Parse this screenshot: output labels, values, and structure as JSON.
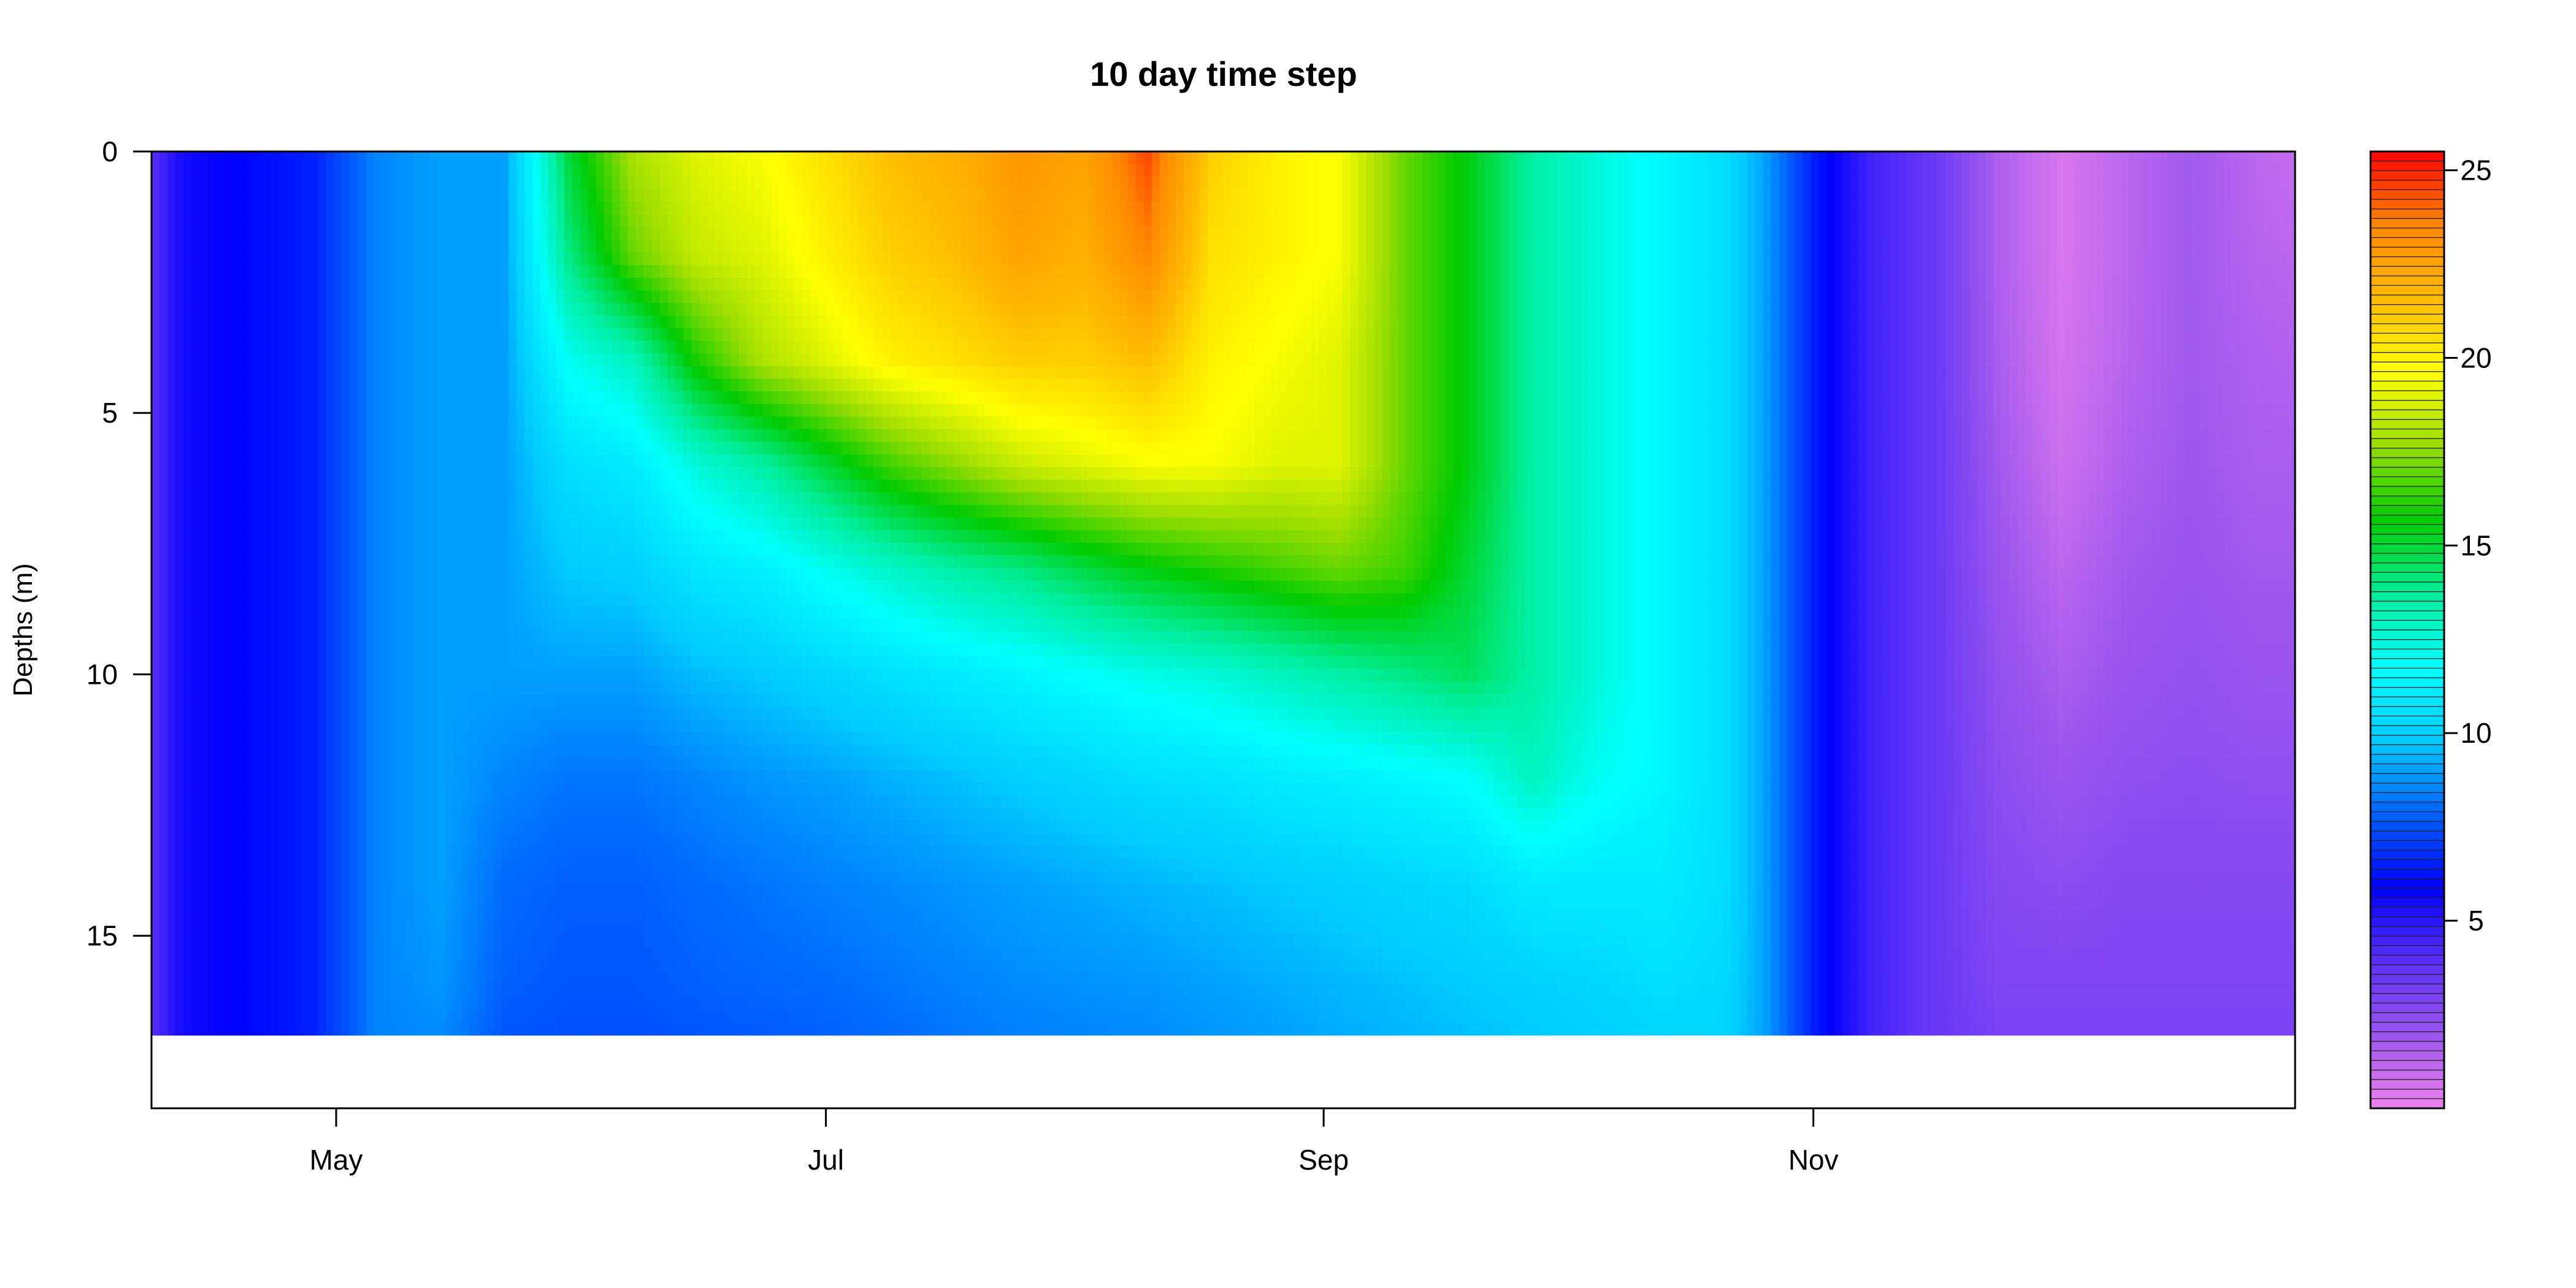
{
  "chart_data": {
    "type": "heatmap",
    "title": "10 day time step",
    "xlabel": "",
    "ylabel": "Depths (m)",
    "x_axis": {
      "type": "date",
      "range": [
        "2013-04-08",
        "2013-12-31"
      ],
      "ticks": [
        {
          "label": "May",
          "date": "2013-05-01"
        },
        {
          "label": "Jul",
          "date": "2013-07-01"
        },
        {
          "label": "Sep",
          "date": "2013-09-01"
        },
        {
          "label": "Nov",
          "date": "2013-11-01"
        }
      ]
    },
    "y_axis": {
      "range": [
        0,
        18.3
      ],
      "reversed": true,
      "ticks": [
        0,
        5,
        10,
        15
      ],
      "data_bottom": 16.9
    },
    "colorbar": {
      "range": [
        0,
        25.5
      ],
      "ticks": [
        5,
        10,
        15,
        20,
        25
      ],
      "palette": [
        "#ee82ee",
        "#9a55ee",
        "#5a30f8",
        "#0000ff",
        "#0062ff",
        "#00ccff",
        "#00ffff",
        "#00ee99",
        "#00cc00",
        "#99dd00",
        "#ffff00",
        "#ffbb00",
        "#ff8800",
        "#ff0000"
      ]
    },
    "depth_ticks_series": [
      0,
      2,
      4,
      6,
      8,
      10,
      12,
      14,
      16,
      16.9
    ],
    "profiles": [
      {
        "date": "2013-04-08",
        "temps": [
          4.0,
          4.0,
          4.0,
          4.0,
          4.0,
          4.0,
          4.0,
          4.0,
          4.0,
          4.0
        ]
      },
      {
        "date": "2013-04-12",
        "temps": [
          5.5,
          5.5,
          5.5,
          5.5,
          5.5,
          5.5,
          5.5,
          5.5,
          5.5,
          5.5
        ]
      },
      {
        "date": "2013-04-20",
        "temps": [
          6.0,
          6.0,
          6.0,
          6.0,
          6.0,
          6.0,
          6.0,
          6.0,
          6.0,
          6.0
        ]
      },
      {
        "date": "2013-04-28",
        "temps": [
          6.5,
          6.5,
          6.5,
          6.5,
          6.5,
          6.5,
          6.5,
          6.5,
          6.5,
          6.5
        ]
      },
      {
        "date": "2013-05-06",
        "temps": [
          8.5,
          8.5,
          8.5,
          8.5,
          8.5,
          8.5,
          8.5,
          8.5,
          8.5,
          8.5
        ]
      },
      {
        "date": "2013-05-14",
        "temps": [
          9.0,
          9.0,
          9.0,
          9.0,
          9.0,
          9.0,
          9.0,
          9.0,
          8.8,
          8.6
        ]
      },
      {
        "date": "2013-05-22",
        "temps": [
          9.0,
          9.0,
          9.0,
          9.0,
          9.0,
          9.0,
          8.5,
          8.0,
          7.8,
          7.6
        ]
      },
      {
        "date": "2013-05-30",
        "temps": [
          15.0,
          14.0,
          12.0,
          10.5,
          9.8,
          9.0,
          8.2,
          7.8,
          7.6,
          7.5
        ]
      },
      {
        "date": "2013-06-07",
        "temps": [
          18.0,
          17.0,
          13.0,
          11.0,
          10.0,
          9.0,
          8.2,
          7.8,
          7.6,
          7.5
        ]
      },
      {
        "date": "2013-06-15",
        "temps": [
          19.0,
          18.5,
          16.0,
          12.5,
          10.8,
          9.5,
          8.5,
          8.0,
          7.8,
          7.6
        ]
      },
      {
        "date": "2013-06-23",
        "temps": [
          19.5,
          19.0,
          18.0,
          13.5,
          11.2,
          9.8,
          8.8,
          8.2,
          7.9,
          7.7
        ]
      },
      {
        "date": "2013-07-01",
        "temps": [
          20.5,
          20.0,
          19.0,
          15.0,
          12.0,
          10.2,
          9.0,
          8.4,
          8.0,
          7.8
        ]
      },
      {
        "date": "2013-07-09",
        "temps": [
          21.5,
          21.0,
          20.0,
          16.5,
          12.8,
          10.6,
          9.3,
          8.6,
          8.2,
          8.0
        ]
      },
      {
        "date": "2013-07-17",
        "temps": [
          22.0,
          21.5,
          20.5,
          17.5,
          13.5,
          11.0,
          9.6,
          8.8,
          8.4,
          8.2
        ]
      },
      {
        "date": "2013-07-25",
        "temps": [
          23.0,
          22.5,
          21.0,
          18.5,
          14.0,
          11.4,
          9.9,
          9.0,
          8.6,
          8.4
        ]
      },
      {
        "date": "2013-08-02",
        "temps": [
          22.5,
          22.0,
          21.0,
          19.0,
          14.8,
          11.8,
          10.2,
          9.2,
          8.7,
          8.5
        ]
      },
      {
        "date": "2013-08-10",
        "temps": [
          24.5,
          23.5,
          21.5,
          19.5,
          15.5,
          12.2,
          10.5,
          9.4,
          8.8,
          8.6
        ]
      },
      {
        "date": "2013-08-18",
        "temps": [
          21.0,
          20.5,
          20.0,
          19.5,
          16.0,
          12.5,
          10.7,
          9.6,
          9.0,
          8.8
        ]
      },
      {
        "date": "2013-08-26",
        "temps": [
          20.0,
          20.0,
          19.5,
          19.0,
          16.5,
          13.0,
          11.0,
          9.8,
          9.2,
          9.0
        ]
      },
      {
        "date": "2013-09-03",
        "temps": [
          19.5,
          19.5,
          19.0,
          19.0,
          17.0,
          13.5,
          11.2,
          10.0,
          9.4,
          9.2
        ]
      },
      {
        "date": "2013-09-11",
        "temps": [
          17.0,
          17.0,
          17.0,
          17.0,
          16.5,
          14.0,
          11.5,
          10.2,
          9.6,
          9.4
        ]
      },
      {
        "date": "2013-09-19",
        "temps": [
          15.5,
          15.5,
          15.5,
          15.5,
          15.0,
          14.5,
          11.8,
          10.4,
          9.8,
          9.6
        ]
      },
      {
        "date": "2013-09-27",
        "temps": [
          13.5,
          13.5,
          13.5,
          13.5,
          13.5,
          13.5,
          13.0,
          11.0,
          10.0,
          9.8
        ]
      },
      {
        "date": "2013-10-05",
        "temps": [
          12.5,
          12.5,
          12.5,
          12.5,
          12.5,
          12.5,
          12.0,
          11.0,
          10.2,
          10.0
        ]
      },
      {
        "date": "2013-10-13",
        "temps": [
          11.5,
          11.5,
          11.5,
          11.5,
          11.5,
          11.5,
          11.5,
          11.0,
          10.5,
          10.2
        ]
      },
      {
        "date": "2013-10-21",
        "temps": [
          10.5,
          10.5,
          10.5,
          10.5,
          10.5,
          10.5,
          10.5,
          10.5,
          10.3,
          10.2
        ]
      },
      {
        "date": "2013-10-26",
        "temps": [
          9.0,
          9.0,
          9.0,
          9.0,
          9.0,
          9.0,
          9.0,
          9.0,
          9.0,
          9.0
        ]
      },
      {
        "date": "2013-11-01",
        "temps": [
          6.5,
          6.5,
          6.5,
          6.5,
          6.5,
          6.5,
          6.5,
          6.5,
          6.5,
          6.5
        ]
      },
      {
        "date": "2013-11-08",
        "temps": [
          4.5,
          4.5,
          4.5,
          4.5,
          4.5,
          4.5,
          4.5,
          4.5,
          4.5,
          4.5
        ]
      },
      {
        "date": "2013-11-16",
        "temps": [
          3.5,
          3.5,
          3.5,
          3.5,
          3.5,
          3.5,
          3.5,
          3.5,
          3.5,
          3.5
        ]
      },
      {
        "date": "2013-11-24",
        "temps": [
          1.5,
          1.5,
          1.6,
          1.8,
          2.0,
          2.2,
          2.4,
          2.6,
          2.8,
          3.0
        ]
      },
      {
        "date": "2013-12-02",
        "temps": [
          0.5,
          0.5,
          0.6,
          0.8,
          1.2,
          1.6,
          2.0,
          2.4,
          2.8,
          3.0
        ]
      },
      {
        "date": "2013-12-10",
        "temps": [
          1.2,
          1.2,
          1.3,
          1.5,
          1.8,
          2.0,
          2.3,
          2.6,
          2.8,
          3.0
        ]
      },
      {
        "date": "2013-12-18",
        "temps": [
          1.8,
          1.8,
          1.8,
          1.9,
          2.0,
          2.2,
          2.4,
          2.6,
          2.8,
          3.0
        ]
      },
      {
        "date": "2013-12-26",
        "temps": [
          1.2,
          1.3,
          1.5,
          1.6,
          1.8,
          2.0,
          2.3,
          2.6,
          2.8,
          3.0
        ]
      },
      {
        "date": "2013-12-31",
        "temps": [
          1.0,
          1.2,
          1.4,
          1.6,
          1.8,
          2.0,
          2.3,
          2.6,
          2.8,
          3.0
        ]
      }
    ]
  }
}
